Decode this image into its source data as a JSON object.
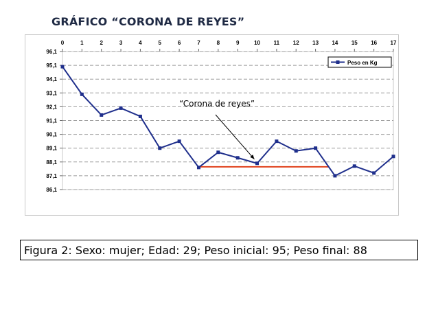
{
  "page": {
    "title": "GRÁFICO “CORONA DE REYES”",
    "caption": "Figura 2: Sexo: mujer; Edad: 29; Peso inicial: 95; Peso final: 88"
  },
  "chart_data": {
    "type": "line",
    "x_ticks": [
      "0",
      "1",
      "2",
      "3",
      "4",
      "5",
      "6",
      "7",
      "8",
      "9",
      "10",
      "11",
      "12",
      "13",
      "14",
      "15",
      "16",
      "17"
    ],
    "y_ticks": [
      "96,1",
      "95,1",
      "94,1",
      "93,1",
      "92,1",
      "91,1",
      "90,1",
      "89,1",
      "88,1",
      "87,1",
      "86,1"
    ],
    "y_tick_values": [
      96.1,
      95.1,
      94.1,
      93.1,
      92.1,
      91.1,
      90.1,
      89.1,
      88.1,
      87.1,
      86.1
    ],
    "ylim": [
      86.1,
      96.1
    ],
    "xlim": [
      0,
      17
    ],
    "grid": true,
    "legend_position": "top-right",
    "series": [
      {
        "name": "Peso en Kg",
        "color": "#1f2f8c",
        "x": [
          0,
          1,
          2,
          3,
          4,
          5,
          6,
          7,
          8,
          9,
          10,
          11,
          12,
          13,
          14,
          15,
          16,
          17
        ],
        "values": [
          95.0,
          93.0,
          91.5,
          92.0,
          91.4,
          89.1,
          89.6,
          87.7,
          88.8,
          88.4,
          88.0,
          89.6,
          88.9,
          89.1,
          87.1,
          87.8,
          87.3,
          88.5
        ]
      }
    ],
    "reference_line": {
      "x_start": 7,
      "x_end": 13.7,
      "y": 87.75,
      "color": "#e0401a"
    },
    "annotation": {
      "text": "“Corona de reyes”",
      "arrow_to_x": 10,
      "arrow_to_y": 88.4
    }
  }
}
